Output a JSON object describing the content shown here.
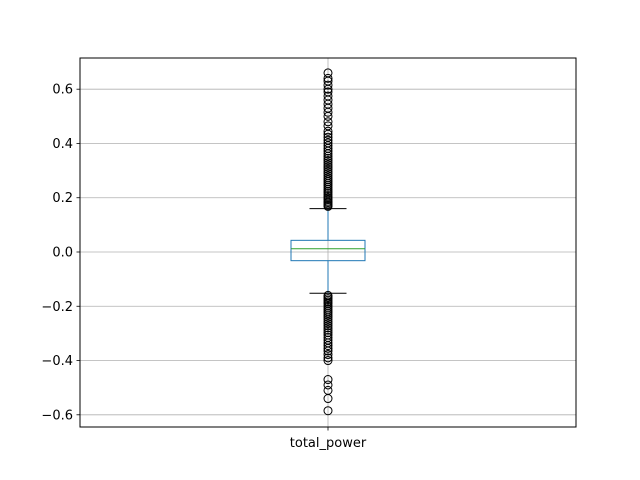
{
  "chart_data": {
    "type": "box",
    "categories": [
      "total_power"
    ],
    "title": "",
    "xlabel": "",
    "ylabel": "",
    "ylim": [
      -0.645,
      0.715
    ],
    "yticks": [
      -0.6,
      -0.4,
      -0.2,
      0.0,
      0.2,
      0.4,
      0.6
    ],
    "ytick_labels": [
      "−0.6",
      "−0.4",
      "−0.2",
      "0.0",
      "0.2",
      "0.4",
      "0.6"
    ],
    "grid": true,
    "box": {
      "whisker_low": -0.152,
      "q1": -0.032,
      "median": 0.012,
      "q3": 0.043,
      "whisker_high": 0.16
    },
    "outliers": [
      0.168,
      0.172,
      0.177,
      0.182,
      0.187,
      0.193,
      0.199,
      0.205,
      0.211,
      0.218,
      0.224,
      0.231,
      0.238,
      0.245,
      0.252,
      0.259,
      0.266,
      0.273,
      0.281,
      0.289,
      0.297,
      0.305,
      0.313,
      0.321,
      0.329,
      0.337,
      0.345,
      0.353,
      0.362,
      0.372,
      0.382,
      0.392,
      0.402,
      0.412,
      0.423,
      0.434,
      0.445,
      0.465,
      0.48,
      0.5,
      0.515,
      0.53,
      0.545,
      0.56,
      0.575,
      0.59,
      0.6,
      0.615,
      0.63,
      0.64,
      0.66,
      -0.16,
      -0.166,
      -0.172,
      -0.178,
      -0.184,
      -0.19,
      -0.197,
      -0.204,
      -0.211,
      -0.218,
      -0.225,
      -0.232,
      -0.24,
      -0.248,
      -0.256,
      -0.264,
      -0.272,
      -0.28,
      -0.288,
      -0.297,
      -0.306,
      -0.315,
      -0.325,
      -0.335,
      -0.345,
      -0.355,
      -0.365,
      -0.378,
      -0.39,
      -0.4,
      -0.47,
      -0.49,
      -0.51,
      -0.54,
      -0.585
    ],
    "colors": {
      "box": "#1f77b4",
      "median": "#2ca02c",
      "outlier": "#000000",
      "grid": "#b0b0b0",
      "axes": "#000000"
    }
  }
}
